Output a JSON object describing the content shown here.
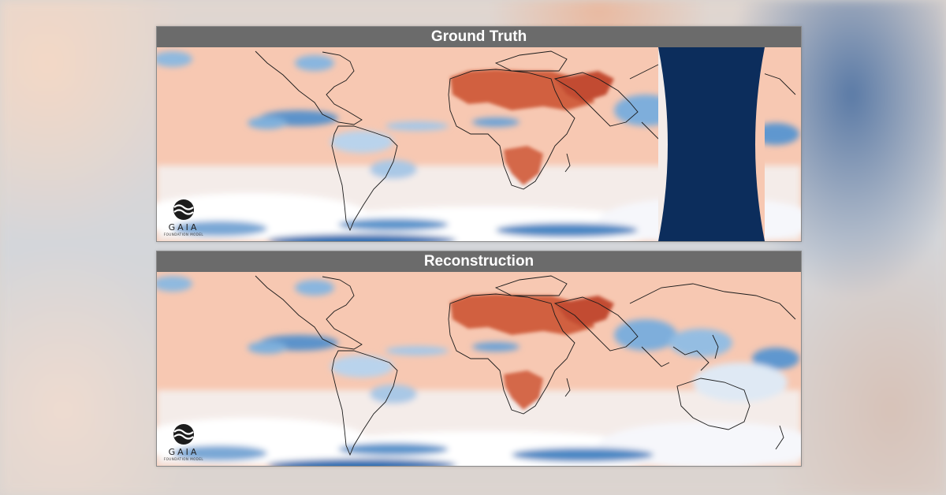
{
  "panels": [
    {
      "title": "Ground Truth",
      "has_night_band": true
    },
    {
      "title": "Reconstruction",
      "has_night_band": false
    }
  ],
  "logo": {
    "name": "GAIA",
    "tagline": "FOUNDATION MODEL"
  },
  "colors": {
    "warm_low": "#f6c3aa",
    "warm_high": "#c54a2e",
    "cold": "#2a6bb0",
    "cold_light": "#e7f0fa",
    "night_band": "#0c2d5c",
    "title_bar": "#6b6b6b"
  }
}
